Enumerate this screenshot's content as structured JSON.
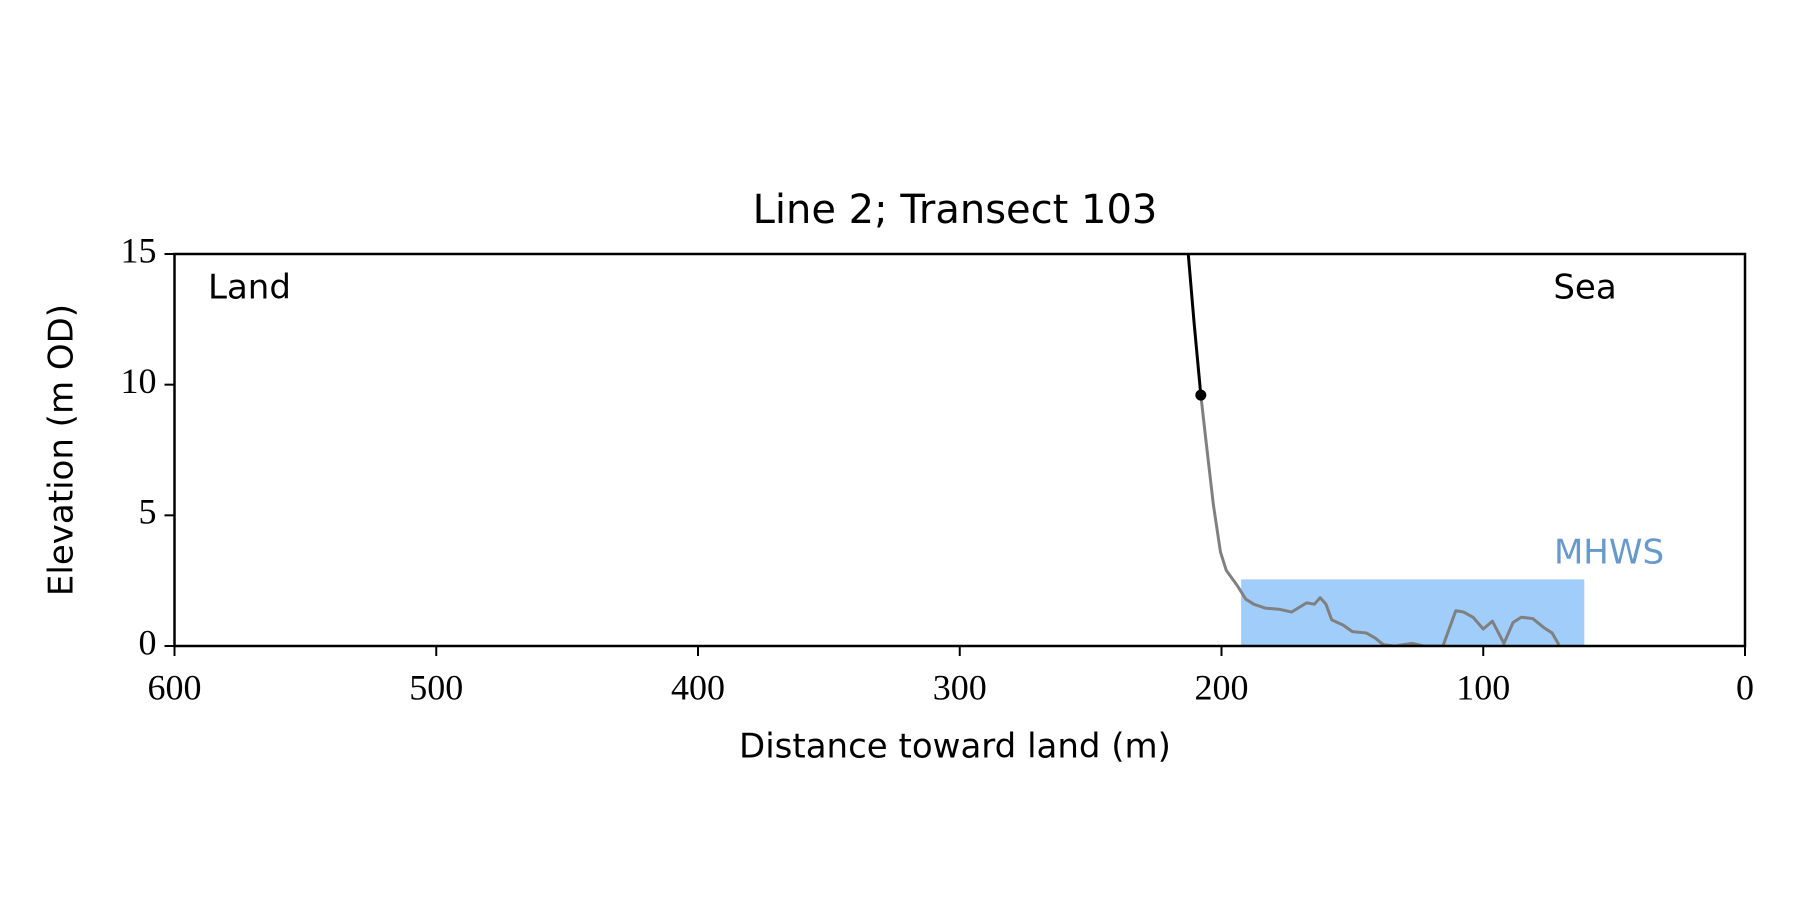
{
  "chart_data": {
    "type": "line",
    "title": "Line 2; Transect 103",
    "x_label": "Distance toward land (m)",
    "y_label": "Elevation (m OD)",
    "xlim": [
      600,
      0
    ],
    "ylim": [
      0,
      15
    ],
    "xticks": [
      600,
      500,
      400,
      300,
      200,
      100,
      0
    ],
    "yticks": [
      0,
      5,
      10,
      15
    ],
    "annotations": [
      "Land",
      "Sea"
    ],
    "mhws": {
      "label": "MHWS",
      "level": 2.55,
      "x_range": [
        192.5,
        61.4
      ],
      "color": "#a0cdfa",
      "label_color": "#6699cc"
    },
    "series": [
      {
        "style": "line",
        "color": "#808080",
        "x": [
          207.9,
          206.1,
          203.1,
          200.4,
          198.2,
          193.9,
          190.8,
          187.7,
          183.3,
          177.6,
          173.2,
          167.5,
          164.5,
          162.3,
          160.1,
          157.9,
          153.5,
          150,
          144.7,
          141.2,
          138.2,
          133.8,
          127.2,
          122.8,
          115.4,
          110.5,
          107.5,
          103.9,
          100,
          96.5,
          92.1,
          88.6,
          85.5,
          81.1,
          76.8,
          73.7,
          71.1
        ],
        "values": [
          9.6,
          8.0,
          5.4,
          3.6,
          2.9,
          2.3,
          1.8,
          1.6,
          1.45,
          1.4,
          1.3,
          1.65,
          1.6,
          1.85,
          1.6,
          1.0,
          0.8,
          0.55,
          0.5,
          0.3,
          0.05,
          0,
          0.1,
          0,
          0,
          1.35,
          1.3,
          1.1,
          0.65,
          0.95,
          0.1,
          0.9,
          1.1,
          1.05,
          0.7,
          0.5,
          0.05
        ]
      },
      {
        "style": "line",
        "color": "#000000",
        "x": [
          212.7,
          210.5,
          207.9
        ],
        "values": [
          15,
          12.4,
          9.6
        ]
      },
      {
        "style": "marker",
        "color": "#000000",
        "x": [
          207.9
        ],
        "values": [
          9.6
        ]
      }
    ]
  }
}
